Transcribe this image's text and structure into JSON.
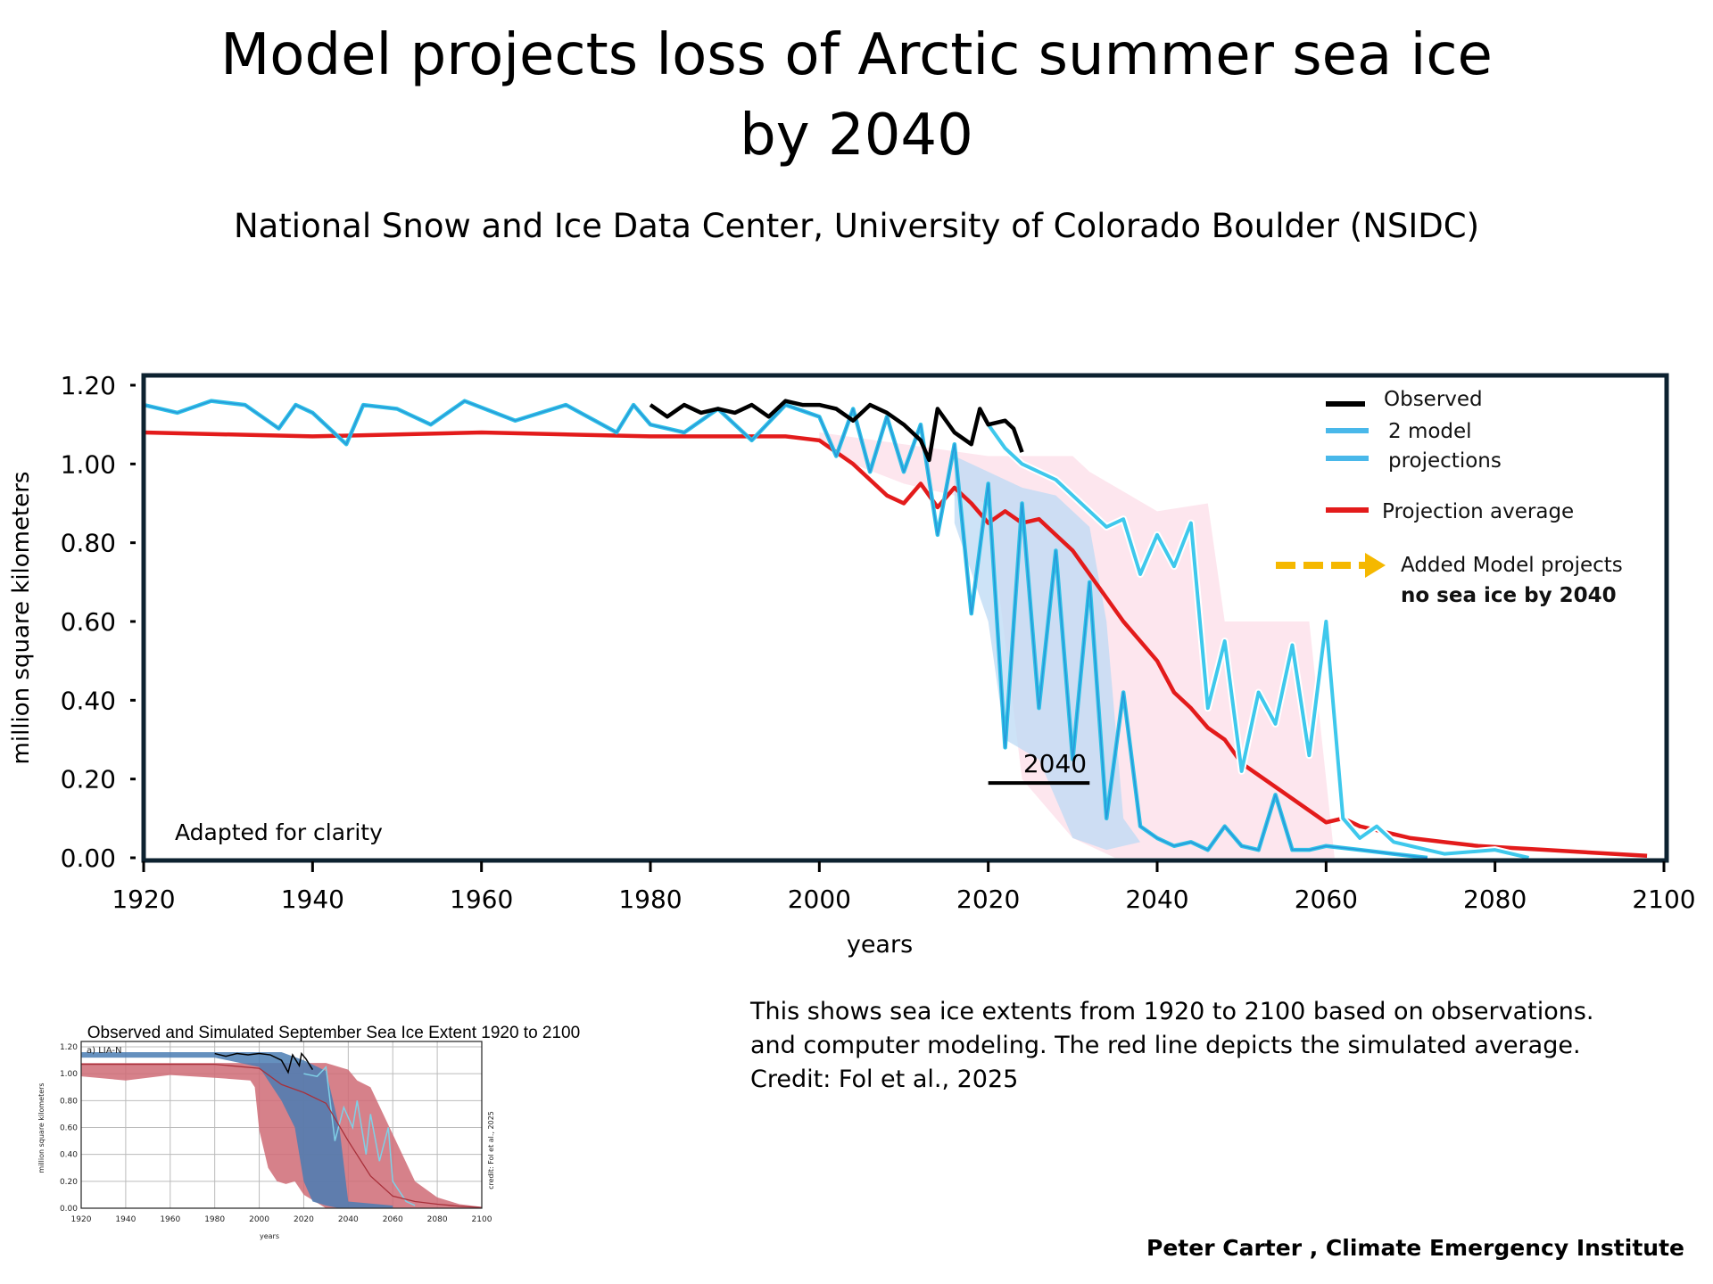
{
  "header": {
    "title_line1": "Model projects loss of  Arctic summer sea ice",
    "title_line2": "by 2040",
    "subtitle": "National Snow and Ice Data Center, University of Colorado Boulder (NSIDC)"
  },
  "caption": {
    "lines": [
      "This shows sea ice extents from 1920 to 2100 based on observations.",
      "and computer modeling. The red line depicts the simulated average.",
      "Credit: Fol et al., 2025"
    ]
  },
  "author": "Peter Carter , Climate Emergency Institute",
  "colors": {
    "observed": "#000000",
    "model": "#3ec8ec",
    "model_dark": "#1f6fd0",
    "average": "#e31b1b",
    "range_fill": "#fde3ec",
    "arrow": "#f5b800",
    "frame": "#0d2230",
    "inset_red_fill": "#cf6b76",
    "inset_blue_fill": "#4a7db3",
    "inset_light_blue": "#7fd0e6"
  },
  "chart_data": [
    {
      "type": "line",
      "title": "",
      "xlabel": "years",
      "ylabel": "million square kilometers",
      "xlim": [
        1920,
        2100
      ],
      "ylim": [
        0,
        1.2
      ],
      "x_ticks": [
        "1920",
        "1940",
        "1960",
        "1980",
        "2000",
        "2020",
        "2040",
        "2060",
        "2080",
        "2100"
      ],
      "y_ticks": [
        "0.00",
        "0.20",
        "0.40",
        "0.60",
        "0.80",
        "1.00",
        "1.20"
      ],
      "grid": false,
      "legend_position": "top-right",
      "legend": [
        {
          "label": "Observed",
          "color": "#000000"
        },
        {
          "label": "2 model",
          "color": "#49b8ea"
        },
        {
          "label": "projections",
          "color": "#49b8ea"
        },
        {
          "label": "Projection average",
          "color": "#e31b1b"
        }
      ],
      "annotations": {
        "arrow_label_line1": "Added Model projects",
        "arrow_label_line2": "no sea ice by 2040",
        "marker_label": "2040",
        "marker_value": 0.19,
        "marker_x_range": [
          2020,
          2032
        ],
        "corner_note": "Adapted for clarity"
      },
      "series": [
        {
          "name": "Observed",
          "x": [
            1980,
            1982,
            1984,
            1986,
            1988,
            1990,
            1992,
            1994,
            1996,
            1998,
            2000,
            2002,
            2004,
            2006,
            2008,
            2010,
            2012,
            2013,
            2014,
            2016,
            2018,
            2019,
            2020,
            2022,
            2023,
            2024
          ],
          "values": [
            1.15,
            1.12,
            1.15,
            1.13,
            1.14,
            1.13,
            1.15,
            1.12,
            1.16,
            1.15,
            1.15,
            1.14,
            1.11,
            1.15,
            1.13,
            1.1,
            1.06,
            1.01,
            1.14,
            1.08,
            1.05,
            1.14,
            1.1,
            1.11,
            1.09,
            1.03
          ]
        },
        {
          "name": "Model projection A",
          "x": [
            1920,
            1924,
            1928,
            1932,
            1936,
            1938,
            1940,
            1944,
            1946,
            1950,
            1954,
            1958,
            1964,
            1970,
            1976,
            1978,
            1980,
            1984,
            1988,
            1992,
            1996,
            2000,
            2002,
            2004,
            2006,
            2008,
            2010,
            2012,
            2014,
            2016,
            2018,
            2020,
            2022,
            2024,
            2026,
            2028,
            2030,
            2032,
            2034,
            2036,
            2038,
            2040,
            2042,
            2044,
            2046,
            2048,
            2050,
            2052,
            2054,
            2056,
            2058,
            2060,
            2064,
            2068,
            2072
          ],
          "values": [
            1.15,
            1.13,
            1.16,
            1.15,
            1.09,
            1.15,
            1.13,
            1.05,
            1.15,
            1.14,
            1.1,
            1.16,
            1.11,
            1.15,
            1.08,
            1.15,
            1.1,
            1.08,
            1.14,
            1.06,
            1.15,
            1.12,
            1.02,
            1.14,
            0.98,
            1.12,
            0.98,
            1.1,
            0.82,
            1.05,
            0.62,
            0.95,
            0.28,
            0.9,
            0.38,
            0.78,
            0.25,
            0.7,
            0.1,
            0.42,
            0.08,
            0.05,
            0.03,
            0.04,
            0.02,
            0.08,
            0.03,
            0.02,
            0.16,
            0.02,
            0.02,
            0.03,
            0.02,
            0.01,
            0.0
          ]
        },
        {
          "name": "Model projection B",
          "x": [
            2020,
            2022,
            2024,
            2026,
            2028,
            2030,
            2032,
            2034,
            2036,
            2038,
            2040,
            2042,
            2044,
            2046,
            2048,
            2050,
            2052,
            2054,
            2056,
            2058,
            2060,
            2062,
            2064,
            2066,
            2068,
            2070,
            2072,
            2074,
            2080,
            2084
          ],
          "values": [
            1.1,
            1.04,
            1.0,
            0.98,
            0.96,
            0.92,
            0.88,
            0.84,
            0.86,
            0.72,
            0.82,
            0.74,
            0.85,
            0.38,
            0.55,
            0.22,
            0.42,
            0.34,
            0.54,
            0.26,
            0.6,
            0.1,
            0.05,
            0.08,
            0.04,
            0.03,
            0.02,
            0.01,
            0.02,
            0.0
          ]
        },
        {
          "name": "Projection average",
          "x": [
            1920,
            1940,
            1960,
            1980,
            1996,
            2000,
            2004,
            2008,
            2010,
            2012,
            2014,
            2016,
            2018,
            2020,
            2022,
            2024,
            2026,
            2028,
            2030,
            2032,
            2034,
            2036,
            2038,
            2040,
            2042,
            2044,
            2046,
            2048,
            2050,
            2052,
            2054,
            2056,
            2058,
            2060,
            2062,
            2064,
            2066,
            2068,
            2070,
            2074,
            2078,
            2082,
            2086,
            2090,
            2094,
            2098
          ],
          "values": [
            1.08,
            1.07,
            1.08,
            1.07,
            1.07,
            1.06,
            1.0,
            0.92,
            0.9,
            0.95,
            0.89,
            0.94,
            0.9,
            0.85,
            0.88,
            0.85,
            0.86,
            0.82,
            0.78,
            0.72,
            0.66,
            0.6,
            0.55,
            0.5,
            0.42,
            0.38,
            0.33,
            0.3,
            0.24,
            0.21,
            0.18,
            0.15,
            0.12,
            0.09,
            0.1,
            0.08,
            0.07,
            0.06,
            0.05,
            0.04,
            0.03,
            0.025,
            0.02,
            0.015,
            0.01,
            0.005
          ]
        }
      ]
    },
    {
      "type": "area",
      "title": "Observed and Simulated September Sea Ice Extent 1920 to 2100",
      "panel_label": "a) LIA-N",
      "xlabel": "years",
      "ylabel": "million square kilometers",
      "side_note": "credit: Fol et al., 2025",
      "xlim": [
        1920,
        2100
      ],
      "ylim": [
        0,
        1.2
      ],
      "x_ticks": [
        "1920",
        "1940",
        "1960",
        "1980",
        "2000",
        "2020",
        "2040",
        "2060",
        "2080",
        "2100"
      ],
      "y_ticks": [
        "0.00",
        "0.20",
        "0.40",
        "0.60",
        "0.80",
        "1.00",
        "1.20"
      ],
      "grid": true,
      "series": [
        {
          "name": "Model range (red)",
          "x": [
            1920,
            1940,
            1960,
            1980,
            1996,
            1998,
            2000,
            2004,
            2008,
            2012,
            2016,
            2020,
            2030,
            2040,
            2044,
            2050,
            2060,
            2070,
            2080,
            2090,
            2100
          ],
          "upper": [
            1.08,
            1.08,
            1.08,
            1.08,
            1.08,
            1.08,
            1.08,
            1.08,
            1.08,
            1.08,
            1.08,
            1.08,
            1.08,
            1.03,
            0.95,
            0.9,
            0.55,
            0.2,
            0.08,
            0.03,
            0.01
          ],
          "lower": [
            0.98,
            0.95,
            0.99,
            0.97,
            0.95,
            0.9,
            0.58,
            0.3,
            0.2,
            0.18,
            0.2,
            0.1,
            0.0,
            0.0,
            0.0,
            0.0,
            0.0,
            0.0,
            0.0,
            0.0,
            0.0
          ]
        },
        {
          "name": "Projection average",
          "x": [
            1920,
            1980,
            2000,
            2010,
            2020,
            2030,
            2040,
            2050,
            2060,
            2070,
            2080,
            2090,
            2100
          ],
          "values": [
            1.07,
            1.07,
            1.04,
            0.92,
            0.86,
            0.78,
            0.5,
            0.24,
            0.09,
            0.05,
            0.03,
            0.015,
            0.005
          ]
        },
        {
          "name": "Observed",
          "x": [
            1980,
            1985,
            1990,
            1995,
            2000,
            2005,
            2010,
            2013,
            2015,
            2018,
            2019,
            2021,
            2024
          ],
          "values": [
            1.15,
            1.13,
            1.15,
            1.14,
            1.15,
            1.14,
            1.1,
            1.01,
            1.14,
            1.06,
            1.15,
            1.11,
            1.03
          ]
        }
      ]
    }
  ]
}
